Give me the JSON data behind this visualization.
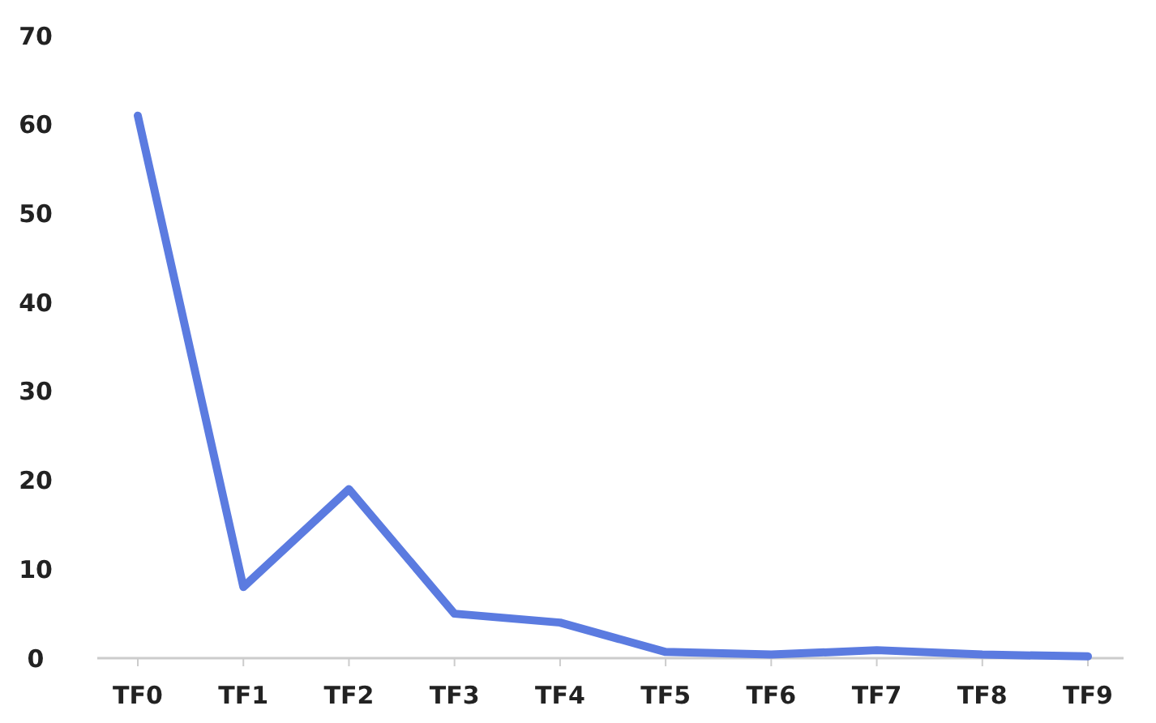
{
  "chart_data": {
    "type": "line",
    "categories": [
      "TF0",
      "TF1",
      "TF2",
      "TF3",
      "TF4",
      "TF5",
      "TF6",
      "TF7",
      "TF8",
      "TF9"
    ],
    "series": [
      {
        "color": "#5b7be0",
        "values": [
          61,
          8,
          19,
          5,
          4,
          0.7,
          0.4,
          0.9,
          0.4,
          0.2
        ]
      }
    ],
    "ylim": [
      0,
      70
    ],
    "yticks": [
      0,
      10,
      20,
      30,
      40,
      50,
      60,
      70
    ],
    "marker": "none",
    "line_style": "solid"
  }
}
